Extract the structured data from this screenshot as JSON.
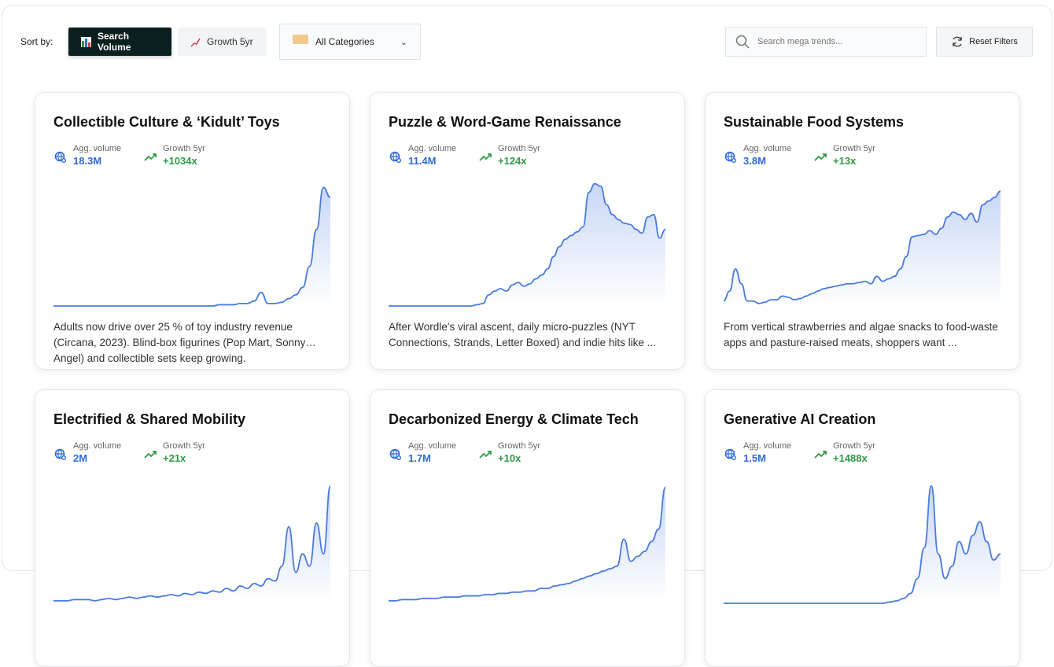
{
  "toolbar": {
    "sort_label": "Sort by:",
    "sort_options": [
      {
        "label": "Search Volume",
        "icon": "bar-chart-icon",
        "active": true
      },
      {
        "label": "Growth 5yr",
        "icon": "trend-chart-icon",
        "active": false
      }
    ],
    "category_select": {
      "value": "All Categories",
      "icon": "tag-icon"
    },
    "search": {
      "placeholder": "Search mega trends...",
      "value": ""
    },
    "reset_label": "Reset Filters"
  },
  "colors": {
    "accent": "#2d6ad9",
    "growth": "#2e9a46",
    "active_button": "#0b1f1f",
    "line": "#4a7be0"
  },
  "metric_labels": {
    "volume": "Agg. volume",
    "growth": "Growth 5yr"
  },
  "cards": [
    {
      "title": "Collectible Culture & ‘Kidult’ Toys",
      "volume": "18.3M",
      "growth": "+1034x",
      "description": "Adults now drive over 25 % of toy industry revenue (Circana, 2023). Blind-box figurines (Pop Mart, Sonny Angel) and collectible sets keep growing.",
      "trend": [
        0,
        0,
        0,
        0,
        0,
        0,
        0,
        0,
        0,
        0,
        0,
        0,
        0,
        0,
        0,
        0,
        0,
        0,
        0,
        0,
        0,
        0,
        0,
        0,
        1,
        1,
        1,
        2,
        2,
        4,
        11,
        2,
        2,
        3,
        6,
        9,
        15,
        32,
        62,
        96,
        88
      ]
    },
    {
      "title": "Puzzle & Word-Game Renaissance",
      "volume": "11.4M",
      "growth": "+124x",
      "description": "After Wordle’s viral ascent, daily micro-puzzles (NYT Connections, Strands, Letter Boxed) and indie hits like ...",
      "trend": [
        0,
        0,
        0,
        0,
        0,
        0,
        0,
        0,
        0,
        0,
        0,
        0,
        0,
        0,
        0,
        1,
        2,
        9,
        12,
        14,
        12,
        17,
        19,
        16,
        18,
        22,
        25,
        30,
        40,
        48,
        54,
        57,
        60,
        64,
        92,
        99,
        97,
        82,
        74,
        70,
        67,
        66,
        62,
        59,
        72,
        74,
        55,
        62
      ]
    },
    {
      "title": "Sustainable Food Systems",
      "volume": "3.8M",
      "growth": "+13x",
      "description": "From vertical strawberries and algae snacks to food-waste apps and pasture-raised meats, shoppers want ...",
      "trend": [
        4,
        12,
        30,
        18,
        4,
        4,
        2,
        3,
        5,
        5,
        8,
        7,
        5,
        6,
        8,
        10,
        12,
        14,
        15,
        16,
        17,
        18,
        18,
        19,
        20,
        18,
        24,
        20,
        22,
        24,
        30,
        40,
        56,
        57,
        58,
        61,
        58,
        63,
        72,
        76,
        74,
        70,
        75,
        68,
        82,
        85,
        88,
        93
      ]
    },
    {
      "title": "Electrified & Shared Mobility",
      "volume": "2M",
      "growth": "+21x",
      "description": "",
      "trend": [
        2,
        2,
        2,
        3,
        3,
        3,
        2,
        3,
        4,
        3,
        4,
        5,
        4,
        5,
        6,
        5,
        6,
        7,
        6,
        8,
        7,
        9,
        8,
        10,
        9,
        12,
        10,
        14,
        12,
        16,
        14,
        20,
        18,
        30,
        62,
        25,
        40,
        30,
        65,
        40,
        95
      ]
    },
    {
      "title": "Decarbonized Energy & Climate Tech",
      "volume": "1.7M",
      "growth": "+10x",
      "description": "",
      "trend": [
        2,
        2,
        3,
        3,
        3,
        4,
        4,
        4,
        5,
        5,
        5,
        6,
        6,
        6,
        7,
        7,
        8,
        8,
        9,
        9,
        10,
        10,
        12,
        12,
        14,
        15,
        16,
        18,
        20,
        22,
        24,
        26,
        28,
        30,
        52,
        34,
        38,
        42,
        50,
        60,
        94
      ]
    },
    {
      "title": "Generative AI Creation",
      "volume": "1.5M",
      "growth": "+1488x",
      "description": "",
      "trend": [
        0,
        0,
        0,
        0,
        0,
        0,
        0,
        0,
        0,
        0,
        0,
        0,
        0,
        0,
        0,
        0,
        0,
        0,
        0,
        0,
        0,
        0,
        0,
        0,
        1,
        2,
        4,
        8,
        20,
        45,
        95,
        40,
        20,
        30,
        50,
        40,
        55,
        66,
        50,
        35,
        40
      ]
    }
  ]
}
